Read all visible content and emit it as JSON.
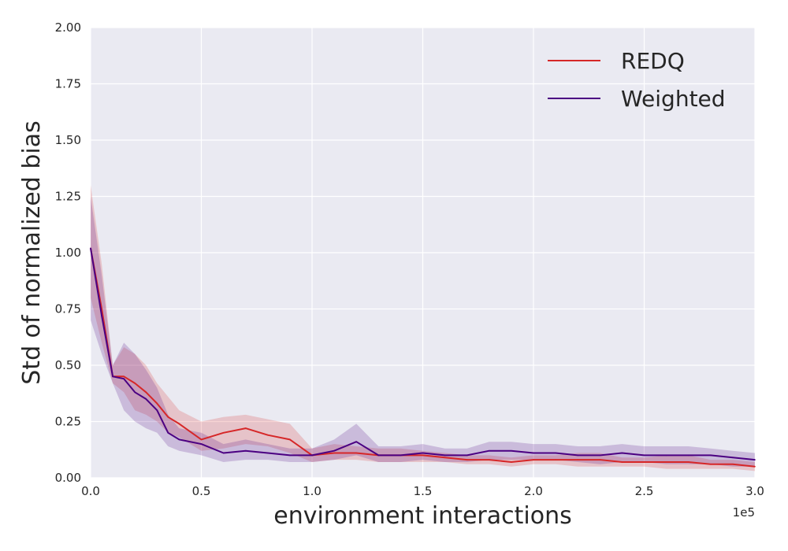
{
  "chart_data": {
    "type": "line",
    "xlabel": "environment interactions",
    "ylabel": "Std of normalized bias",
    "x_offset_text": "1e5",
    "xlim": [
      0,
      3.0
    ],
    "ylim": [
      0,
      2.0
    ],
    "xticks": [
      "0.0",
      "0.5",
      "1.0",
      "1.5",
      "2.0",
      "2.5",
      "3.0"
    ],
    "yticks": [
      "0.00",
      "0.25",
      "0.50",
      "0.75",
      "1.00",
      "1.25",
      "1.50",
      "1.75",
      "2.00"
    ],
    "grid": true,
    "legend_position": "top-right",
    "x": [
      0.0,
      0.05,
      0.1,
      0.15,
      0.2,
      0.25,
      0.3,
      0.35,
      0.4,
      0.5,
      0.6,
      0.7,
      0.8,
      0.9,
      1.0,
      1.1,
      1.2,
      1.3,
      1.4,
      1.5,
      1.6,
      1.7,
      1.8,
      1.9,
      2.0,
      2.1,
      2.2,
      2.3,
      2.4,
      2.5,
      2.6,
      2.7,
      2.8,
      2.9,
      3.0
    ],
    "series": [
      {
        "name": "REDQ",
        "color": "#d62728",
        "values": [
          1.02,
          0.75,
          0.45,
          0.45,
          0.42,
          0.38,
          0.33,
          0.27,
          0.24,
          0.17,
          0.2,
          0.22,
          0.19,
          0.17,
          0.1,
          0.11,
          0.11,
          0.1,
          0.1,
          0.1,
          0.09,
          0.08,
          0.08,
          0.07,
          0.08,
          0.08,
          0.08,
          0.08,
          0.07,
          0.07,
          0.07,
          0.07,
          0.06,
          0.06,
          0.05
        ],
        "lower": [
          0.8,
          0.6,
          0.42,
          0.38,
          0.3,
          0.28,
          0.25,
          0.2,
          0.18,
          0.12,
          0.13,
          0.15,
          0.14,
          0.11,
          0.07,
          0.08,
          0.08,
          0.07,
          0.07,
          0.07,
          0.07,
          0.06,
          0.06,
          0.05,
          0.06,
          0.06,
          0.05,
          0.05,
          0.05,
          0.05,
          0.04,
          0.04,
          0.04,
          0.04,
          0.03
        ],
        "upper": [
          1.3,
          0.95,
          0.5,
          0.58,
          0.55,
          0.5,
          0.42,
          0.36,
          0.3,
          0.25,
          0.27,
          0.28,
          0.26,
          0.24,
          0.13,
          0.15,
          0.14,
          0.13,
          0.13,
          0.12,
          0.11,
          0.1,
          0.1,
          0.09,
          0.1,
          0.1,
          0.11,
          0.11,
          0.09,
          0.09,
          0.1,
          0.1,
          0.08,
          0.08,
          0.07
        ]
      },
      {
        "name": "Weighted",
        "color": "#4b0082",
        "values": [
          1.02,
          0.72,
          0.45,
          0.44,
          0.38,
          0.35,
          0.3,
          0.2,
          0.17,
          0.15,
          0.11,
          0.12,
          0.11,
          0.1,
          0.1,
          0.12,
          0.16,
          0.1,
          0.1,
          0.11,
          0.1,
          0.1,
          0.12,
          0.12,
          0.11,
          0.11,
          0.1,
          0.1,
          0.11,
          0.1,
          0.1,
          0.1,
          0.1,
          0.09,
          0.08
        ],
        "lower": [
          0.7,
          0.55,
          0.42,
          0.3,
          0.25,
          0.22,
          0.2,
          0.14,
          0.12,
          0.1,
          0.07,
          0.08,
          0.08,
          0.07,
          0.07,
          0.08,
          0.1,
          0.07,
          0.07,
          0.08,
          0.07,
          0.07,
          0.08,
          0.08,
          0.08,
          0.08,
          0.07,
          0.06,
          0.07,
          0.07,
          0.06,
          0.06,
          0.06,
          0.05,
          0.05
        ],
        "upper": [
          1.25,
          0.9,
          0.5,
          0.6,
          0.55,
          0.48,
          0.4,
          0.28,
          0.22,
          0.2,
          0.15,
          0.17,
          0.15,
          0.13,
          0.13,
          0.17,
          0.24,
          0.14,
          0.14,
          0.15,
          0.13,
          0.13,
          0.16,
          0.16,
          0.15,
          0.15,
          0.14,
          0.14,
          0.15,
          0.14,
          0.14,
          0.14,
          0.13,
          0.12,
          0.11
        ]
      }
    ]
  }
}
